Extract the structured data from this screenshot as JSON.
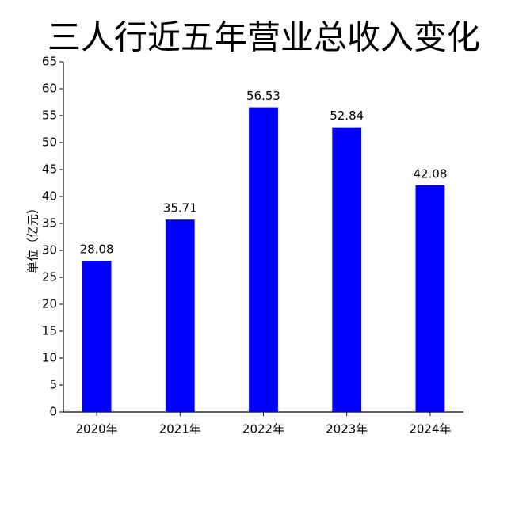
{
  "chart_data": {
    "type": "bar",
    "title": "三人行近五年营业总收入变化",
    "ylabel": "单位（亿元）",
    "categories": [
      "2020年",
      "2021年",
      "2022年",
      "2023年",
      "2024年"
    ],
    "values": [
      28.08,
      35.71,
      56.53,
      52.84,
      42.08
    ],
    "color": "#0000ff",
    "ylim": [
      0,
      65
    ],
    "yticks": [
      0,
      5,
      10,
      15,
      20,
      25,
      30,
      35,
      40,
      45,
      50,
      55,
      60,
      65
    ],
    "grid": false
  }
}
